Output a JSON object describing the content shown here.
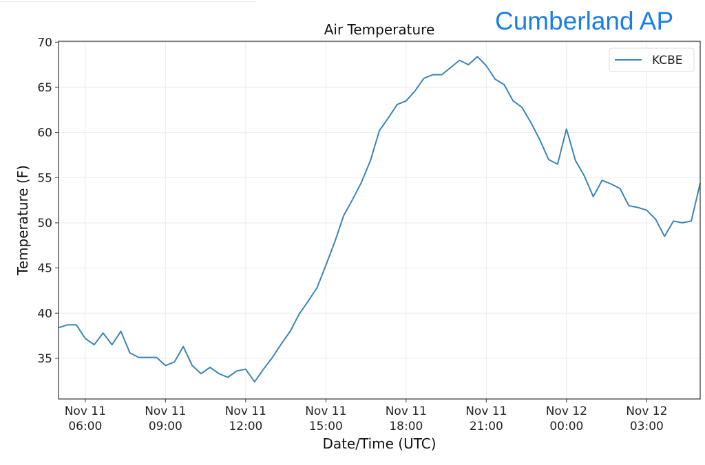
{
  "header": {
    "station_name": "Cumberland AP"
  },
  "chart_data": {
    "type": "line",
    "title": "Air Temperature",
    "xlabel": "Date/Time (UTC)",
    "ylabel": "Temperature (F)",
    "ylim": [
      30.5,
      70.1
    ],
    "xlim": [
      "Nov 11 05:00",
      "Nov 12 05:00"
    ],
    "grid": true,
    "legend_position": "top-right",
    "y_ticks": [
      "35",
      "40",
      "45",
      "50",
      "55",
      "60",
      "65",
      "70"
    ],
    "x_ticks": [
      {
        "at": "Nov 11 06:00",
        "line1": "Nov 11",
        "line2": "06:00"
      },
      {
        "at": "Nov 11 09:00",
        "line1": "Nov 11",
        "line2": "09:00"
      },
      {
        "at": "Nov 11 12:00",
        "line1": "Nov 11",
        "line2": "12:00"
      },
      {
        "at": "Nov 11 15:00",
        "line1": "Nov 11",
        "line2": "15:00"
      },
      {
        "at": "Nov 11 18:00",
        "line1": "Nov 11",
        "line2": "18:00"
      },
      {
        "at": "Nov 11 21:00",
        "line1": "Nov 11",
        "line2": "21:00"
      },
      {
        "at": "Nov 12 00:00",
        "line1": "Nov 12",
        "line2": "00:00"
      },
      {
        "at": "Nov 12 03:00",
        "line1": "Nov 12",
        "line2": "03:00"
      }
    ],
    "series": [
      {
        "name": "KCBE",
        "color": "#3a84b5",
        "x": [
          "Nov 11 05:00",
          "Nov 11 05:20",
          "Nov 11 05:40",
          "Nov 11 06:00",
          "Nov 11 06:20",
          "Nov 11 06:40",
          "Nov 11 07:00",
          "Nov 11 07:20",
          "Nov 11 07:40",
          "Nov 11 08:00",
          "Nov 11 08:20",
          "Nov 11 08:40",
          "Nov 11 09:00",
          "Nov 11 09:20",
          "Nov 11 09:40",
          "Nov 11 10:00",
          "Nov 11 10:20",
          "Nov 11 10:40",
          "Nov 11 11:00",
          "Nov 11 11:20",
          "Nov 11 11:40",
          "Nov 11 12:00",
          "Nov 11 12:20",
          "Nov 11 12:40",
          "Nov 11 13:00",
          "Nov 11 13:20",
          "Nov 11 13:40",
          "Nov 11 14:00",
          "Nov 11 14:20",
          "Nov 11 14:40",
          "Nov 11 15:00",
          "Nov 11 15:20",
          "Nov 11 15:40",
          "Nov 11 16:00",
          "Nov 11 16:20",
          "Nov 11 16:40",
          "Nov 11 17:00",
          "Nov 11 17:20",
          "Nov 11 17:40",
          "Nov 11 18:00",
          "Nov 11 18:20",
          "Nov 11 18:40",
          "Nov 11 19:00",
          "Nov 11 19:20",
          "Nov 11 19:40",
          "Nov 11 20:00",
          "Nov 11 20:20",
          "Nov 11 20:40",
          "Nov 11 21:00",
          "Nov 11 21:20",
          "Nov 11 21:40",
          "Nov 11 22:00",
          "Nov 11 22:20",
          "Nov 11 22:40",
          "Nov 11 23:00",
          "Nov 11 23:20",
          "Nov 11 23:40",
          "Nov 12 00:00",
          "Nov 12 00:20",
          "Nov 12 00:40",
          "Nov 12 01:00",
          "Nov 12 01:20",
          "Nov 12 01:40",
          "Nov 12 02:00",
          "Nov 12 02:20",
          "Nov 12 02:40",
          "Nov 12 03:00",
          "Nov 12 03:20",
          "Nov 12 03:40",
          "Nov 12 04:00",
          "Nov 12 04:20",
          "Nov 12 04:40",
          "Nov 12 05:00"
        ],
        "y": [
          38.4,
          38.7,
          38.7,
          37.2,
          36.5,
          37.8,
          36.5,
          38.0,
          35.6,
          35.1,
          35.1,
          35.1,
          34.2,
          34.6,
          36.3,
          34.2,
          33.3,
          34.0,
          33.3,
          32.9,
          33.6,
          33.8,
          32.4,
          33.8,
          35.1,
          36.6,
          38.0,
          39.9,
          41.3,
          42.8,
          45.3,
          47.9,
          50.8,
          52.6,
          54.5,
          56.9,
          60.2,
          61.6,
          63.1,
          63.5,
          64.6,
          66.0,
          66.4,
          66.4,
          67.2,
          68.0,
          67.5,
          68.4,
          67.4,
          65.9,
          65.3,
          63.5,
          62.8,
          61.1,
          59.2,
          57.0,
          56.5,
          60.4,
          56.9,
          55.2,
          52.9,
          54.7,
          54.3,
          53.8,
          51.9,
          51.7,
          51.4,
          50.4,
          48.5,
          50.2,
          50.0,
          50.2,
          54.4
        ]
      }
    ]
  }
}
